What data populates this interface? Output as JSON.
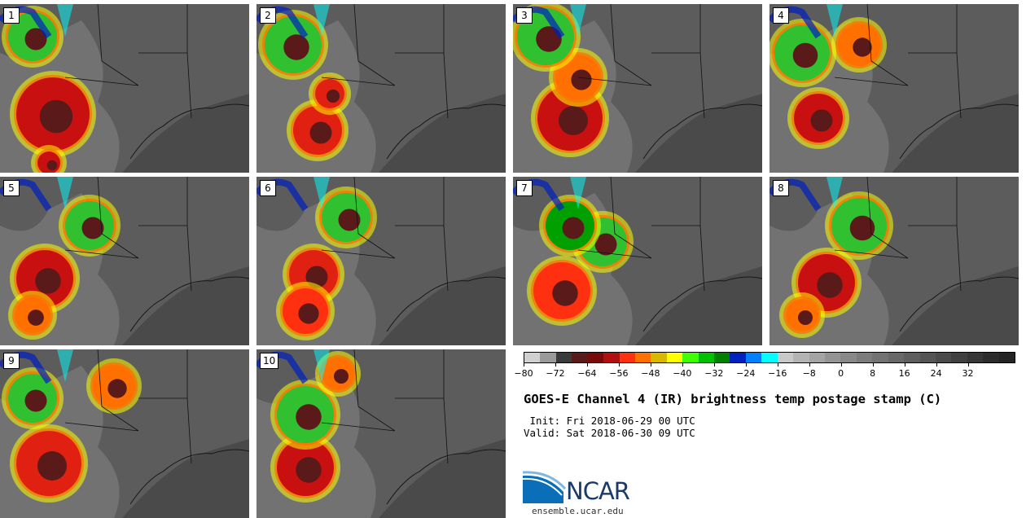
{
  "panels": [
    {
      "label": "1"
    },
    {
      "label": "2"
    },
    {
      "label": "3"
    },
    {
      "label": "4"
    },
    {
      "label": "5"
    },
    {
      "label": "6"
    },
    {
      "label": "7"
    },
    {
      "label": "8"
    },
    {
      "label": "9"
    },
    {
      "label": "10"
    }
  ],
  "colorbar": {
    "colors": [
      "#d0d0d0",
      "#9a9a9a",
      "#3a3a3a",
      "#5a1a1a",
      "#7a0a0a",
      "#b01010",
      "#ff3010",
      "#ff7000",
      "#d8b800",
      "#ffff00",
      "#40ff00",
      "#00c000",
      "#008000",
      "#0020c0",
      "#0080ff",
      "#00ffff",
      "#c8c8c8",
      "#b4b4b4",
      "#a4a4a4",
      "#949494",
      "#888888",
      "#7c7c7c",
      "#727272",
      "#686868",
      "#5e5e5e",
      "#545454",
      "#4a4a4a",
      "#404040",
      "#363636",
      "#2c2c2c",
      "#242424"
    ],
    "ticks": [
      "−80",
      "−72",
      "−64",
      "−56",
      "−48",
      "−40",
      "−32",
      "−24",
      "−16",
      "−8",
      "0",
      "8",
      "16",
      "24",
      "32"
    ]
  },
  "title": "GOES-E Channel 4 (IR) brightness temp postage stamp (C)",
  "init": " Init: Fri 2018-06-29 00 UTC",
  "valid": "Valid: Sat 2018-06-30 09 UTC",
  "logo": {
    "text": "NCAR",
    "url": "ensemble.ucar.edu"
  }
}
